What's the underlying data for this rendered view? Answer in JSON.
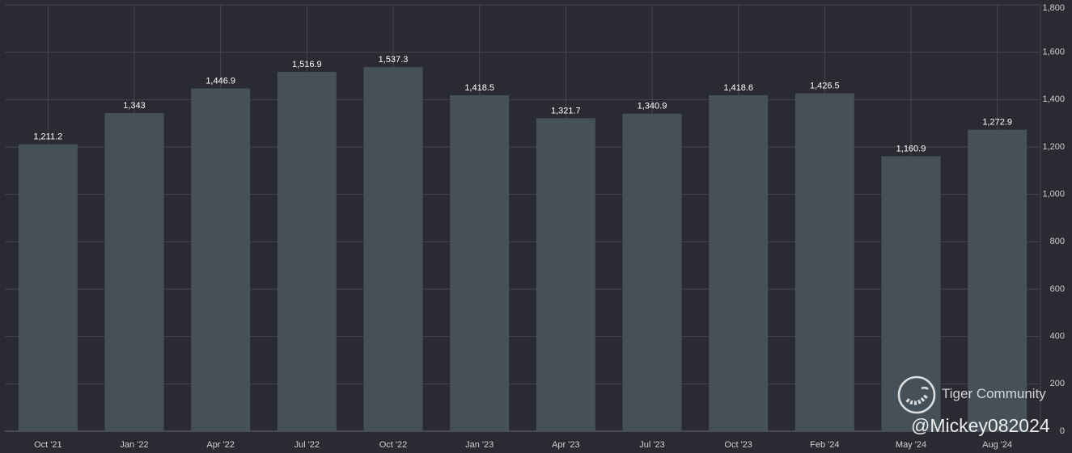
{
  "chart_data": {
    "type": "bar",
    "categories": [
      "Oct '21",
      "Jan '22",
      "Apr '22",
      "Jul '22",
      "Oct '22",
      "Jan '23",
      "Apr '23",
      "Jul '23",
      "Oct '23",
      "Feb '24",
      "May '24",
      "Aug '24"
    ],
    "values": [
      1211.2,
      1343,
      1446.9,
      1516.9,
      1537.3,
      1418.5,
      1321.7,
      1340.9,
      1418.6,
      1426.5,
      1160.9,
      1272.9
    ],
    "value_labels": [
      "1,211.2",
      "1,343",
      "1,446.9",
      "1,516.9",
      "1,537.3",
      "1,418.5",
      "1,321.7",
      "1,340.9",
      "1,418.6",
      "1,426.5",
      "1,160.9",
      "1,272.9"
    ],
    "y_ticks": [
      "0",
      "200",
      "400",
      "600",
      "800",
      "1,000",
      "1,200",
      "1,400",
      "1,600",
      "1,800"
    ],
    "ylim": [
      0,
      1800
    ],
    "y_axis_side": "right",
    "grid": true,
    "colors": {
      "background": "#2a2a33",
      "bar": "#465058",
      "grid": "#44454f",
      "text": "#cfd0d4"
    }
  },
  "watermark": {
    "brand": "Tiger Community",
    "handle": "@Mickey082024",
    "logo_icon": "tiger-logo-icon"
  }
}
